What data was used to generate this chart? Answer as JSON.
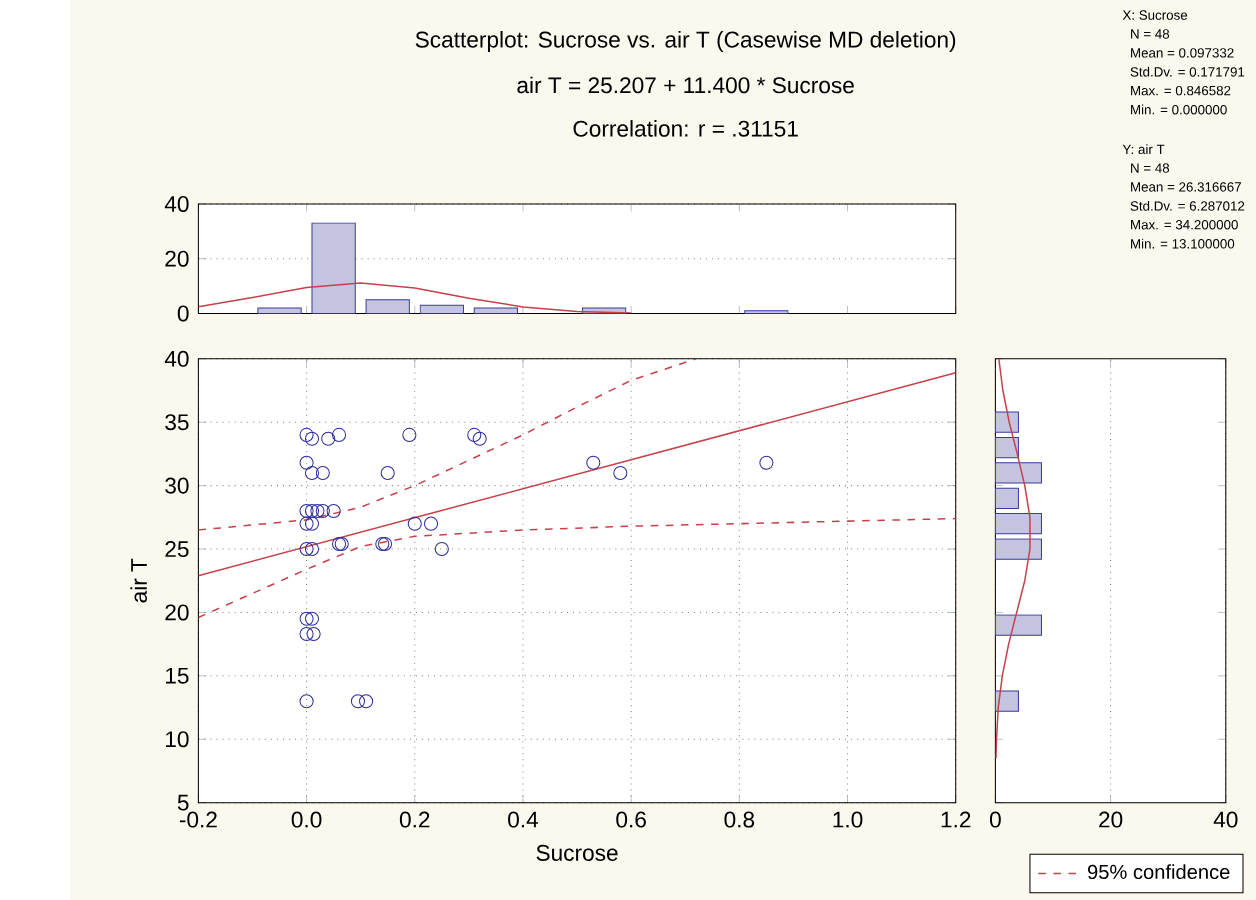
{
  "chart_data": [
    {
      "type": "histogram",
      "title": "Scatterplot: Sucrose  vs. air T (Casewise MD deletion)",
      "subtitle": "air T = 25.207 + 11.400 * Sucrose",
      "annotations": [
        "Correlation: r = .31151",
        "X: Sucrose",
        "N = 48",
        "Mean = 0.097332",
        "Std.Dv. = 0.171791",
        "Max. = 0.846582",
        "Min. = 0.000000",
        "Y: air T",
        "N = 48",
        "Mean = 26.316667",
        "Std.Dv. = 6.287012",
        "Max. = 34.200000",
        "Min. = 13.100000"
      ],
      "xlim": [
        -0.2,
        1.2
      ],
      "ylim": [
        0,
        40
      ],
      "xticks": [
        -0.2,
        0,
        0.2,
        0.4,
        0.6,
        0.8,
        1.0,
        1.2
      ],
      "yticks": [
        0,
        20,
        40
      ],
      "grid": "y",
      "tick_labels": "y",
      "series": [
        {
          "color": "#3a3a9c",
          "bins": [
            -0.1,
            0,
            0.1,
            0.2,
            0.3,
            0.4,
            0.5,
            0.6,
            0.7,
            0.8,
            0.9
          ],
          "values": [
            2,
            33,
            5,
            3,
            2,
            0,
            2,
            0,
            0,
            1
          ]
        },
        {
          "type": "line",
          "color": "#c8404a",
          "x": [
            -0.2,
            -0.1,
            0,
            0.1,
            0.2,
            0.3,
            0.4,
            0.5,
            0.6
          ],
          "values": [
            2.5,
            5.8,
            9.5,
            11.1,
            9.3,
            5.6,
            2.4,
            0.7,
            0.2
          ]
        }
      ]
    },
    {
      "type": "scatter",
      "xlabel": "Sucrose",
      "ylabel": "air T",
      "xlim": [
        -0.2,
        1.2
      ],
      "ylim": [
        5,
        40
      ],
      "xticks": [
        {
          "value": -0.2,
          "label": "-0.2"
        },
        {
          "value": 0,
          "label": "0.0"
        },
        {
          "value": 0.2,
          "label": "0.2"
        },
        {
          "value": 0.4,
          "label": "0.4"
        },
        {
          "value": 0.6,
          "label": "0.6"
        },
        {
          "value": 0.8,
          "label": "0.8"
        },
        {
          "value": 1.0,
          "label": "1.0"
        },
        {
          "value": 1.2,
          "label": "1.2"
        }
      ],
      "yticks": [
        5,
        10,
        15,
        20,
        25,
        30,
        35,
        40
      ],
      "grid": true,
      "legend": "bottom right",
      "series": [
        {
          "color": "#2b2b9e",
          "marker": "circle",
          "x": [
            0,
            0.01,
            0.04,
            0.06,
            0.19,
            0.31,
            0.32,
            0,
            0.01,
            0.03,
            0.15,
            0.53,
            0.58,
            0.85,
            0,
            0.01,
            0.02,
            0.03,
            0.05,
            0,
            0.01,
            0.2,
            0.23,
            0,
            0.01,
            0.06,
            0.065,
            0.14,
            0.145,
            0.25,
            0,
            0.01,
            0,
            0.013,
            0,
            0.095,
            0.11
          ],
          "values": [
            34,
            33.7,
            33.7,
            34,
            34,
            34,
            33.7,
            31.8,
            31,
            31,
            31,
            31.8,
            31,
            31.8,
            28,
            28,
            28,
            28,
            28,
            27,
            27,
            27,
            27,
            25,
            25,
            25.4,
            25.4,
            25.4,
            25.4,
            25,
            19.5,
            19.5,
            18.3,
            18.3,
            13,
            13,
            13
          ]
        },
        {
          "type": "line",
          "color": "#c8404a",
          "x": [
            -0.2,
            1.2
          ],
          "values": [
            22.9,
            38.9
          ]
        },
        {
          "type": "line",
          "name": "95% confidence",
          "color": "#c8404a",
          "line_style": "dashed",
          "x": [
            -0.2,
            0,
            0.1,
            0.2,
            0.3,
            0.4,
            0.5,
            0.6,
            0.72
          ],
          "values": [
            26.5,
            27.3,
            28.3,
            30,
            32,
            34,
            36.2,
            38.3,
            40
          ]
        },
        {
          "type": "line",
          "color": "#c8404a",
          "line_style": "dashed",
          "x": [
            -0.2,
            0,
            0.1,
            0.2,
            0.4,
            0.6,
            0.8,
            1.0,
            1.2
          ],
          "values": [
            19.6,
            23.4,
            25.2,
            26,
            26.5,
            26.8,
            27,
            27.2,
            27.4
          ]
        }
      ]
    },
    {
      "type": "histogram",
      "orientation": "horizontal",
      "xlim": [
        0,
        40
      ],
      "ylim": [
        5,
        40
      ],
      "xticks": [
        0,
        20,
        40
      ],
      "yticks": [
        5,
        10,
        15,
        20,
        25,
        30,
        35,
        40
      ],
      "grid": "x",
      "tick_labels": "x",
      "series": [
        {
          "color": "#3a3a9c",
          "bins": [
            12,
            14,
            16,
            18,
            20,
            22,
            24,
            26,
            28,
            30,
            32,
            34,
            36
          ],
          "values": [
            4,
            0,
            0,
            8,
            0,
            0,
            8,
            8,
            4,
            8,
            4,
            4
          ]
        },
        {
          "type": "line",
          "color": "#c8404a",
          "x": [
            40,
            37.5,
            35,
            32.5,
            30,
            27.5,
            25,
            22.5,
            20,
            17.5,
            15,
            12.5,
            10,
            8.5
          ],
          "values": [
            0.6,
            1.3,
            2.4,
            3.8,
            5.1,
            6,
            6,
            5.1,
            3.7,
            2.3,
            1.2,
            0.5,
            0.2,
            0.1
          ]
        }
      ]
    }
  ]
}
